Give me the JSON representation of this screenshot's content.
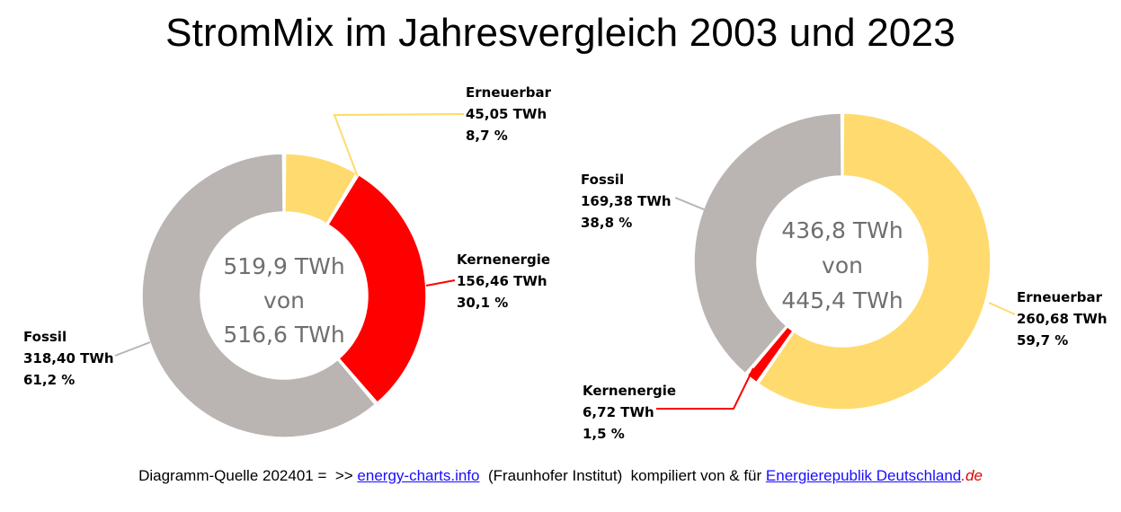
{
  "title": "StromMix im Jahresvergleich 2003 und 2023",
  "colors": {
    "fossil": "#bab5b2",
    "kernenergie": "#ff0000",
    "erneuerbar": "#ffda6e"
  },
  "chart_data": [
    {
      "type": "pie",
      "variant": "donut",
      "year": "2003",
      "center_text": [
        "519,9 TWh",
        "von",
        "516,6 TWh"
      ],
      "slices": [
        {
          "name": "Erneuerbar",
          "value": 45.05,
          "value_label": "45,05 TWh",
          "percent": 8.7,
          "percent_label": "8,7 %",
          "color": "#ffda6e"
        },
        {
          "name": "Kernenergie",
          "value": 156.46,
          "value_label": "156,46 TWh",
          "percent": 30.1,
          "percent_label": "30,1 %",
          "color": "#ff0000"
        },
        {
          "name": "Fossil",
          "value": 318.4,
          "value_label": "318,40 TWh",
          "percent": 61.2,
          "percent_label": "61,2 %",
          "color": "#bab5b2"
        }
      ]
    },
    {
      "type": "pie",
      "variant": "donut",
      "year": "2023",
      "center_text": [
        "436,8 TWh",
        "von",
        "445,4 TWh"
      ],
      "slices": [
        {
          "name": "Erneuerbar",
          "value": 260.68,
          "value_label": "260,68 TWh",
          "percent": 59.7,
          "percent_label": "59,7 %",
          "color": "#ffda6e"
        },
        {
          "name": "Kernenergie",
          "value": 6.72,
          "value_label": "6,72 TWh",
          "percent": 1.5,
          "percent_label": "1,5 %",
          "color": "#ff0000"
        },
        {
          "name": "Fossil",
          "value": 169.38,
          "value_label": "169,38 TWh",
          "percent": 38.8,
          "percent_label": "38,8 %",
          "color": "#bab5b2"
        }
      ]
    }
  ],
  "footer": {
    "prefix": "Diagramm-Quelle 202401 =  >> ",
    "link1": "energy-charts.info",
    "middle": "  (Fraunhofer Institut)  kompiliert von & für ",
    "link2": "Energierepublik Deutschland",
    "suffix": ".de"
  }
}
